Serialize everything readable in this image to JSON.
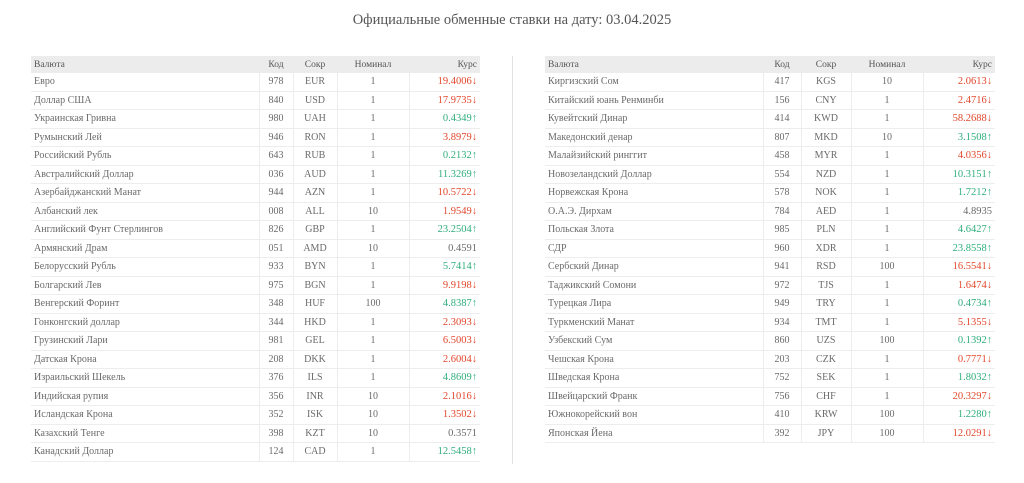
{
  "page": {
    "title": "Официальные обменные ставки на дату: 03.04.2025"
  },
  "columns": {
    "name": "Валюта",
    "code": "Код",
    "abbr": "Сокр",
    "nominal": "Номинал",
    "rate": "Курс"
  },
  "colors": {
    "up": "#2fae7d",
    "down": "#e2472c",
    "neutral": "#6a6a6a"
  },
  "left_rows": [
    {
      "name": "Евро",
      "code": "978",
      "abbr": "EUR",
      "nominal": "1",
      "rate": "19.4006↓",
      "trend": "down"
    },
    {
      "name": "Доллар США",
      "code": "840",
      "abbr": "USD",
      "nominal": "1",
      "rate": "17.9735↓",
      "trend": "down"
    },
    {
      "name": "Украинская Гривна",
      "code": "980",
      "abbr": "UAH",
      "nominal": "1",
      "rate": "0.4349↑",
      "trend": "up"
    },
    {
      "name": "Румынский Лей",
      "code": "946",
      "abbr": "RON",
      "nominal": "1",
      "rate": "3.8979↓",
      "trend": "down"
    },
    {
      "name": "Российский Рубль",
      "code": "643",
      "abbr": "RUB",
      "nominal": "1",
      "rate": "0.2132↑",
      "trend": "up"
    },
    {
      "name": "Австралийский Доллар",
      "code": "036",
      "abbr": "AUD",
      "nominal": "1",
      "rate": "11.3269↑",
      "trend": "up"
    },
    {
      "name": "Азербайджанский Манат",
      "code": "944",
      "abbr": "AZN",
      "nominal": "1",
      "rate": "10.5722↓",
      "trend": "down"
    },
    {
      "name": "Албанский лек",
      "code": "008",
      "abbr": "ALL",
      "nominal": "10",
      "rate": "1.9549↓",
      "trend": "down"
    },
    {
      "name": "Английский Фунт Стерлингов",
      "code": "826",
      "abbr": "GBP",
      "nominal": "1",
      "rate": "23.2504↑",
      "trend": "up"
    },
    {
      "name": "Армянский Драм",
      "code": "051",
      "abbr": "AMD",
      "nominal": "10",
      "rate": "0.4591",
      "trend": "flat"
    },
    {
      "name": "Белорусский Рубль",
      "code": "933",
      "abbr": "BYN",
      "nominal": "1",
      "rate": "5.7414↑",
      "trend": "up"
    },
    {
      "name": "Болгарский Лев",
      "code": "975",
      "abbr": "BGN",
      "nominal": "1",
      "rate": "9.9198↓",
      "trend": "down"
    },
    {
      "name": "Венгерский Форинт",
      "code": "348",
      "abbr": "HUF",
      "nominal": "100",
      "rate": "4.8387↑",
      "trend": "up"
    },
    {
      "name": "Гонконгский доллар",
      "code": "344",
      "abbr": "HKD",
      "nominal": "1",
      "rate": "2.3093↓",
      "trend": "down"
    },
    {
      "name": "Грузинский Лари",
      "code": "981",
      "abbr": "GEL",
      "nominal": "1",
      "rate": "6.5003↓",
      "trend": "down"
    },
    {
      "name": "Датская Крона",
      "code": "208",
      "abbr": "DKK",
      "nominal": "1",
      "rate": "2.6004↓",
      "trend": "down"
    },
    {
      "name": "Израильский Шекель",
      "code": "376",
      "abbr": "ILS",
      "nominal": "1",
      "rate": "4.8609↑",
      "trend": "up"
    },
    {
      "name": "Индийская рупия",
      "code": "356",
      "abbr": "INR",
      "nominal": "10",
      "rate": "2.1016↓",
      "trend": "down"
    },
    {
      "name": "Исландская Крона",
      "code": "352",
      "abbr": "ISK",
      "nominal": "10",
      "rate": "1.3502↓",
      "trend": "down"
    },
    {
      "name": "Казахский Тенге",
      "code": "398",
      "abbr": "KZT",
      "nominal": "10",
      "rate": "0.3571",
      "trend": "flat"
    },
    {
      "name": "Канадский Доллар",
      "code": "124",
      "abbr": "CAD",
      "nominal": "1",
      "rate": "12.5458↑",
      "trend": "up"
    }
  ],
  "right_rows": [
    {
      "name": "Киргизский Сом",
      "code": "417",
      "abbr": "KGS",
      "nominal": "10",
      "rate": "2.0613↓",
      "trend": "down"
    },
    {
      "name": "Китайский юань Ренминби",
      "code": "156",
      "abbr": "CNY",
      "nominal": "1",
      "rate": "2.4716↓",
      "trend": "down"
    },
    {
      "name": "Кувейтский Динар",
      "code": "414",
      "abbr": "KWD",
      "nominal": "1",
      "rate": "58.2688↓",
      "trend": "down"
    },
    {
      "name": "Македонский денар",
      "code": "807",
      "abbr": "MKD",
      "nominal": "10",
      "rate": "3.1508↑",
      "trend": "up"
    },
    {
      "name": "Малайзийский ринггит",
      "code": "458",
      "abbr": "MYR",
      "nominal": "1",
      "rate": "4.0356↓",
      "trend": "down"
    },
    {
      "name": "Новозеландский Доллар",
      "code": "554",
      "abbr": "NZD",
      "nominal": "1",
      "rate": "10.3151↑",
      "trend": "up"
    },
    {
      "name": "Норвежская Крона",
      "code": "578",
      "abbr": "NOK",
      "nominal": "1",
      "rate": "1.7212↑",
      "trend": "up"
    },
    {
      "name": "О.А.Э. Дирхам",
      "code": "784",
      "abbr": "AED",
      "nominal": "1",
      "rate": "4.8935",
      "trend": "flat"
    },
    {
      "name": "Польская Злота",
      "code": "985",
      "abbr": "PLN",
      "nominal": "1",
      "rate": "4.6427↑",
      "trend": "up"
    },
    {
      "name": "СДР",
      "code": "960",
      "abbr": "XDR",
      "nominal": "1",
      "rate": "23.8558↑",
      "trend": "up"
    },
    {
      "name": "Сербский Динар",
      "code": "941",
      "abbr": "RSD",
      "nominal": "100",
      "rate": "16.5541↓",
      "trend": "down"
    },
    {
      "name": "Таджикский Сомони",
      "code": "972",
      "abbr": "TJS",
      "nominal": "1",
      "rate": "1.6474↓",
      "trend": "down"
    },
    {
      "name": "Турецкая Лира",
      "code": "949",
      "abbr": "TRY",
      "nominal": "1",
      "rate": "0.4734↑",
      "trend": "up"
    },
    {
      "name": "Туркменский Манат",
      "code": "934",
      "abbr": "TMT",
      "nominal": "1",
      "rate": "5.1355↓",
      "trend": "down"
    },
    {
      "name": "Узбекский Сум",
      "code": "860",
      "abbr": "UZS",
      "nominal": "100",
      "rate": "0.1392↑",
      "trend": "up"
    },
    {
      "name": "Чешская Крона",
      "code": "203",
      "abbr": "CZK",
      "nominal": "1",
      "rate": "0.7771↓",
      "trend": "down"
    },
    {
      "name": "Шведская Крона",
      "code": "752",
      "abbr": "SEK",
      "nominal": "1",
      "rate": "1.8032↑",
      "trend": "up"
    },
    {
      "name": "Швейцарский Франк",
      "code": "756",
      "abbr": "CHF",
      "nominal": "1",
      "rate": "20.3297↓",
      "trend": "down"
    },
    {
      "name": "Южнокорейский вон",
      "code": "410",
      "abbr": "KRW",
      "nominal": "100",
      "rate": "1.2280↑",
      "trend": "up"
    },
    {
      "name": "Японская Йена",
      "code": "392",
      "abbr": "JPY",
      "nominal": "100",
      "rate": "12.0291↓",
      "trend": "down"
    }
  ]
}
